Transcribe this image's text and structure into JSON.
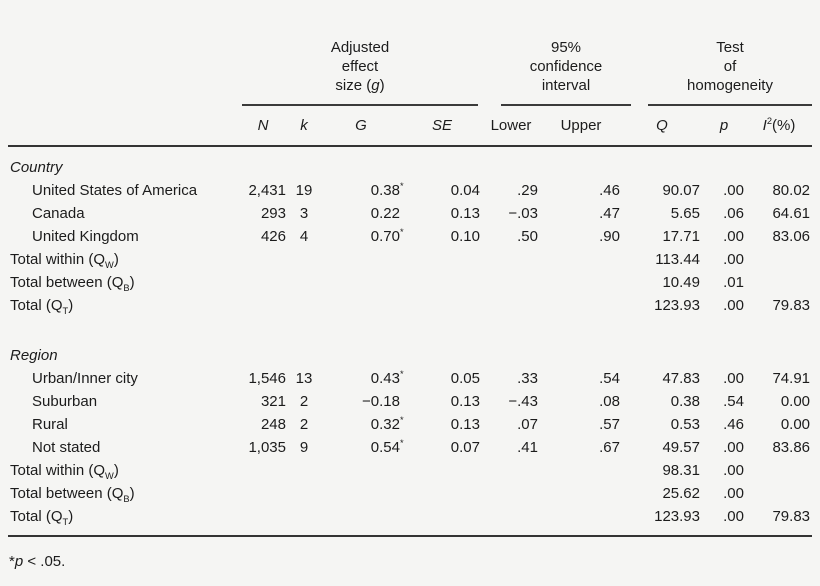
{
  "colors": {
    "background": "#f5f5f3",
    "text": "#1c1c1c",
    "rule": "#333333"
  },
  "table": {
    "col_groups": [
      {
        "label": "Adjusted\neffect\nsize (_g_)",
        "span": 4
      },
      {
        "label": "95%\nconfidence\ninterval",
        "span": 2
      },
      {
        "label": "Test\nof\nhomogeneity",
        "span": 3
      }
    ],
    "columns": [
      "_N_",
      "_k_",
      "_G_",
      "_SE_",
      "Lower",
      "Upper",
      "_Q_",
      "_p_",
      "_I_^2^(%)"
    ],
    "sections": [
      {
        "name": "Country",
        "rows": [
          {
            "label": "United States of America",
            "indent": true,
            "cells": [
              "2,431",
              "19",
              "0.38^*^",
              "0.04",
              ".29",
              ".46",
              "90.07",
              ".00",
              "80.02"
            ]
          },
          {
            "label": "Canada",
            "indent": true,
            "cells": [
              "293",
              "3",
              "0.22",
              "0.13",
              "−.03",
              ".47",
              "5.65",
              ".06",
              "64.61"
            ]
          },
          {
            "label": "United Kingdom",
            "indent": true,
            "cells": [
              "426",
              "4",
              "0.70^*^",
              "0.10",
              ".50",
              ".90",
              "17.71",
              ".00",
              "83.06"
            ]
          },
          {
            "label": "Total within (Q~W~)",
            "indent": false,
            "cells": [
              "",
              "",
              "",
              "",
              "",
              "",
              "113.44",
              ".00",
              ""
            ]
          },
          {
            "label": "Total between (Q~B~)",
            "indent": false,
            "cells": [
              "",
              "",
              "",
              "",
              "",
              "",
              "10.49",
              ".01",
              ""
            ]
          },
          {
            "label": "Total (Q~T~)",
            "indent": false,
            "cells": [
              "",
              "",
              "",
              "",
              "",
              "",
              "123.93",
              ".00",
              "79.83"
            ]
          }
        ]
      },
      {
        "name": "Region",
        "rows": [
          {
            "label": "Urban/Inner city",
            "indent": true,
            "cells": [
              "1,546",
              "13",
              "0.43^*^",
              "0.05",
              ".33",
              ".54",
              "47.83",
              ".00",
              "74.91"
            ]
          },
          {
            "label": "Suburban",
            "indent": true,
            "cells": [
              "321",
              "2",
              "−0.18",
              "0.13",
              "−.43",
              ".08",
              "0.38",
              ".54",
              "0.00"
            ]
          },
          {
            "label": "Rural",
            "indent": true,
            "cells": [
              "248",
              "2",
              "0.32^*^",
              "0.13",
              ".07",
              ".57",
              "0.53",
              ".46",
              "0.00"
            ]
          },
          {
            "label": "Not stated",
            "indent": true,
            "cells": [
              "1,035",
              "9",
              "0.54^*^",
              "0.07",
              ".41",
              ".67",
              "49.57",
              ".00",
              "83.86"
            ]
          },
          {
            "label": "Total within (Q~W~)",
            "indent": false,
            "cells": [
              "",
              "",
              "",
              "",
              "",
              "",
              "98.31",
              ".00",
              ""
            ]
          },
          {
            "label": "Total between (Q~B~)",
            "indent": false,
            "cells": [
              "",
              "",
              "",
              "",
              "",
              "",
              "25.62",
              ".00",
              ""
            ]
          },
          {
            "label": "Total (Q~T~)",
            "indent": false,
            "cells": [
              "",
              "",
              "",
              "",
              "",
              "",
              "123.93",
              ".00",
              "79.83"
            ]
          }
        ]
      }
    ],
    "footnote": "*_p_ < .05."
  }
}
